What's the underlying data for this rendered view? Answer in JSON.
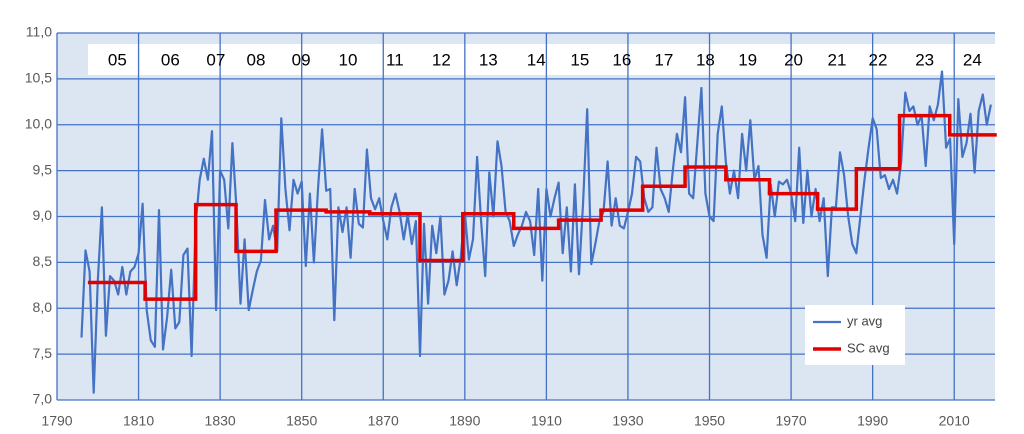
{
  "chart_data": {
    "type": "line",
    "xlim": [
      1790,
      2020
    ],
    "xticks": [
      1790,
      1810,
      1830,
      1850,
      1870,
      1890,
      1910,
      1930,
      1950,
      1970,
      1990,
      2010
    ],
    "ylim": [
      7,
      11
    ],
    "yticks": [
      {
        "value": 7,
        "label": "7,0"
      },
      {
        "value": 7.5,
        "label": "7,5"
      },
      {
        "value": 8,
        "label": "8,0"
      },
      {
        "value": 8.5,
        "label": "8,5"
      },
      {
        "value": 9,
        "label": "9,0"
      },
      {
        "value": 9.5,
        "label": "9,5"
      },
      {
        "value": 10,
        "label": "10,0"
      },
      {
        "value": 10.5,
        "label": "10,5"
      },
      {
        "value": 11,
        "label": "11,0"
      }
    ],
    "grid": true,
    "legend": "bottom-right",
    "series": [
      {
        "name": "yr avg",
        "color": "#4472c4",
        "x": [
          1796,
          1797,
          1798,
          1799,
          1800,
          1801,
          1802,
          1803,
          1804,
          1805,
          1806,
          1807,
          1808,
          1809,
          1810,
          1811,
          1812,
          1813,
          1814,
          1815,
          1816,
          1817,
          1818,
          1819,
          1820,
          1821,
          1822,
          1823,
          1824,
          1825,
          1826,
          1827,
          1828,
          1829,
          1830,
          1831,
          1832,
          1833,
          1834,
          1835,
          1836,
          1837,
          1838,
          1839,
          1840,
          1841,
          1842,
          1843,
          1844,
          1845,
          1846,
          1847,
          1848,
          1849,
          1850,
          1851,
          1852,
          1853,
          1854,
          1855,
          1856,
          1857,
          1858,
          1859,
          1860,
          1861,
          1862,
          1863,
          1864,
          1865,
          1866,
          1867,
          1868,
          1869,
          1870,
          1871,
          1872,
          1873,
          1874,
          1875,
          1876,
          1877,
          1878,
          1879,
          1880,
          1881,
          1882,
          1883,
          1884,
          1885,
          1886,
          1887,
          1888,
          1889,
          1890,
          1891,
          1892,
          1893,
          1894,
          1895,
          1896,
          1897,
          1898,
          1899,
          1900,
          1901,
          1902,
          1903,
          1904,
          1905,
          1906,
          1907,
          1908,
          1909,
          1910,
          1911,
          1912,
          1913,
          1914,
          1915,
          1916,
          1917,
          1918,
          1919,
          1920,
          1921,
          1922,
          1923,
          1924,
          1925,
          1926,
          1927,
          1928,
          1929,
          1930,
          1931,
          1932,
          1933,
          1934,
          1935,
          1936,
          1937,
          1938,
          1939,
          1940,
          1941,
          1942,
          1943,
          1944,
          1945,
          1946,
          1947,
          1948,
          1949,
          1950,
          1951,
          1952,
          1953,
          1954,
          1955,
          1956,
          1957,
          1958,
          1959,
          1960,
          1961,
          1962,
          1963,
          1964,
          1965,
          1966,
          1967,
          1968,
          1969,
          1970,
          1971,
          1972,
          1973,
          1974,
          1975,
          1976,
          1977,
          1978,
          1979,
          1980,
          1981,
          1982,
          1983,
          1984,
          1985,
          1986,
          1987,
          1988,
          1989,
          1990,
          1991,
          1992,
          1993,
          1994,
          1995,
          1996,
          1997,
          1998,
          1999,
          2000,
          2001,
          2002,
          2003,
          2004,
          2005,
          2006,
          2007,
          2008,
          2009,
          2010,
          2011,
          2012,
          2013,
          2014,
          2015,
          2016,
          2017,
          2018,
          2019
        ],
        "values": [
          7.68,
          8.63,
          8.4,
          7.08,
          8.3,
          9.1,
          7.7,
          8.35,
          8.3,
          8.15,
          8.45,
          8.15,
          8.4,
          8.45,
          8.6,
          9.14,
          7.98,
          7.65,
          7.58,
          9.07,
          7.55,
          7.9,
          8.42,
          7.78,
          7.85,
          8.58,
          8.65,
          7.48,
          8.93,
          9.4,
          9.63,
          9.4,
          9.93,
          7.98,
          9.5,
          9.4,
          8.87,
          9.8,
          9.1,
          8.05,
          8.75,
          7.98,
          8.2,
          8.4,
          8.52,
          9.18,
          8.75,
          8.9,
          8.62,
          10.07,
          9.3,
          8.85,
          9.4,
          9.25,
          9.38,
          8.46,
          9.25,
          8.5,
          9.3,
          9.95,
          9.28,
          9.3,
          7.87,
          9.1,
          8.83,
          9.1,
          8.55,
          9.3,
          8.92,
          8.88,
          9.73,
          9.2,
          9.08,
          9.2,
          8.95,
          8.75,
          9.1,
          9.25,
          9.05,
          8.75,
          9.02,
          8.7,
          8.95,
          7.48,
          8.92,
          8.05,
          8.9,
          8.6,
          9.0,
          8.15,
          8.3,
          8.62,
          8.25,
          8.55,
          9.05,
          8.53,
          8.75,
          9.65,
          8.95,
          8.35,
          9.48,
          9.0,
          9.82,
          9.55,
          9.05,
          8.95,
          8.68,
          8.8,
          8.9,
          9.05,
          8.95,
          8.58,
          9.3,
          8.3,
          9.3,
          9.0,
          9.2,
          9.37,
          8.6,
          9.1,
          8.4,
          9.35,
          8.37,
          9.15,
          10.17,
          8.48,
          8.7,
          8.95,
          9.05,
          9.6,
          8.9,
          9.2,
          8.9,
          8.87,
          9.05,
          9.25,
          9.65,
          9.6,
          9.2,
          9.05,
          9.1,
          9.75,
          9.3,
          9.2,
          9.05,
          9.5,
          9.9,
          9.7,
          10.3,
          9.25,
          9.2,
          9.8,
          10.4,
          9.25,
          9.0,
          8.95,
          9.9,
          10.2,
          9.6,
          9.25,
          9.5,
          9.2,
          9.9,
          9.5,
          10.05,
          9.4,
          9.55,
          8.8,
          8.55,
          9.35,
          9.0,
          9.38,
          9.35,
          9.4,
          9.25,
          8.95,
          9.75,
          8.93,
          9.5,
          9.0,
          9.3,
          8.95,
          9.2,
          8.35,
          9.1,
          9.1,
          9.7,
          9.45,
          9.0,
          8.7,
          8.6,
          9.0,
          9.4,
          9.75,
          10.07,
          9.95,
          9.42,
          9.45,
          9.3,
          9.4,
          9.25,
          9.6,
          10.35,
          10.15,
          10.2,
          10.0,
          10.1,
          9.55,
          10.2,
          10.05,
          10.22,
          10.58,
          9.75,
          9.85,
          8.7,
          10.28,
          9.65,
          9.8,
          10.12,
          9.48,
          10.15,
          10.33,
          10.0,
          10.22
        ]
      },
      {
        "name": "SC avg",
        "color": "#e00000",
        "cycle_labels": [
          "05",
          "06",
          "07",
          "08",
          "09",
          "10",
          "11",
          "12",
          "13",
          "14",
          "15",
          "16",
          "17",
          "18",
          "19",
          "20",
          "21",
          "22",
          "23",
          "24"
        ],
        "cycle_start": [
          1798,
          1811.6,
          1824,
          1833.9,
          1843.7,
          1856,
          1866.7,
          1879,
          1889.5,
          1902,
          1913,
          1923.4,
          1933.6,
          1944,
          1954,
          1964.7,
          1976.5,
          1986,
          1996.6,
          2008.9
        ],
        "cycle_end": [
          1811.6,
          1824,
          1833.9,
          1843.7,
          1856,
          1866.7,
          1879,
          1889.5,
          1902,
          1913,
          1923.4,
          1933.6,
          1944,
          1954,
          1964.7,
          1976.5,
          1986,
          1996.6,
          2008.9,
          2020
        ],
        "values": [
          8.28,
          8.1,
          9.13,
          8.62,
          9.07,
          9.05,
          9.03,
          8.52,
          9.03,
          8.87,
          8.96,
          9.07,
          9.33,
          9.54,
          9.4,
          9.25,
          9.08,
          9.52,
          10.1,
          9.89
        ]
      }
    ]
  }
}
